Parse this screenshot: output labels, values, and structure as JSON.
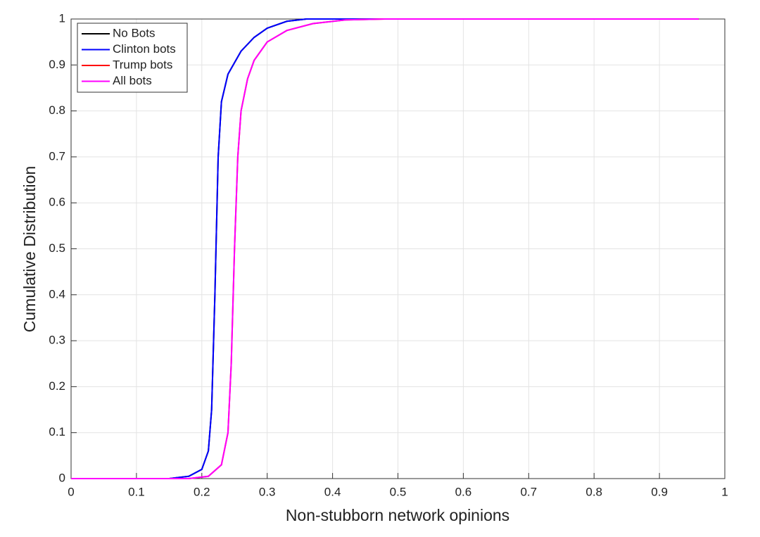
{
  "chart_data": {
    "type": "line",
    "xlabel": "Non-stubborn network opinions",
    "ylabel": "Cumulative Distribution",
    "xlim": [
      0,
      1
    ],
    "ylim": [
      0,
      1
    ],
    "xticks": [
      0,
      0.1,
      0.2,
      0.3,
      0.4,
      0.5,
      0.6,
      0.7,
      0.8,
      0.9,
      1
    ],
    "yticks": [
      0,
      0.1,
      0.2,
      0.3,
      0.4,
      0.5,
      0.6,
      0.7,
      0.8,
      0.9,
      1
    ],
    "grid": true,
    "legend": "upper-left",
    "series": [
      {
        "name": "No Bots",
        "color": "#000000",
        "x": [
          0,
          0.15,
          0.18,
          0.2,
          0.21,
          0.215,
          0.22,
          0.225,
          0.23,
          0.24,
          0.26,
          0.28,
          0.3,
          0.33,
          0.36,
          0.45,
          0.96
        ],
        "values": [
          0,
          0,
          0.005,
          0.02,
          0.06,
          0.15,
          0.4,
          0.7,
          0.82,
          0.88,
          0.93,
          0.96,
          0.98,
          0.995,
          1,
          1,
          1
        ]
      },
      {
        "name": "Clinton bots",
        "color": "#0000ff",
        "x": [
          0,
          0.15,
          0.18,
          0.2,
          0.21,
          0.215,
          0.22,
          0.225,
          0.23,
          0.24,
          0.26,
          0.28,
          0.3,
          0.33,
          0.36,
          0.45,
          0.96
        ],
        "values": [
          0,
          0,
          0.005,
          0.02,
          0.06,
          0.15,
          0.4,
          0.7,
          0.82,
          0.88,
          0.93,
          0.96,
          0.98,
          0.995,
          1,
          1,
          1
        ]
      },
      {
        "name": "Trump bots",
        "color": "#ff0000",
        "x": [
          0,
          0.18,
          0.21,
          0.23,
          0.24,
          0.245,
          0.25,
          0.255,
          0.26,
          0.27,
          0.28,
          0.3,
          0.33,
          0.37,
          0.42,
          0.48,
          0.96
        ],
        "values": [
          0,
          0,
          0.005,
          0.03,
          0.1,
          0.25,
          0.5,
          0.7,
          0.8,
          0.87,
          0.91,
          0.95,
          0.975,
          0.99,
          0.998,
          1,
          1
        ]
      },
      {
        "name": "All bots",
        "color": "#ff00ff",
        "x": [
          0,
          0.18,
          0.21,
          0.23,
          0.24,
          0.245,
          0.25,
          0.255,
          0.26,
          0.27,
          0.28,
          0.3,
          0.33,
          0.37,
          0.42,
          0.48,
          0.96
        ],
        "values": [
          0,
          0,
          0.005,
          0.03,
          0.1,
          0.25,
          0.5,
          0.7,
          0.8,
          0.87,
          0.91,
          0.95,
          0.975,
          0.99,
          0.998,
          1,
          1
        ]
      }
    ]
  }
}
